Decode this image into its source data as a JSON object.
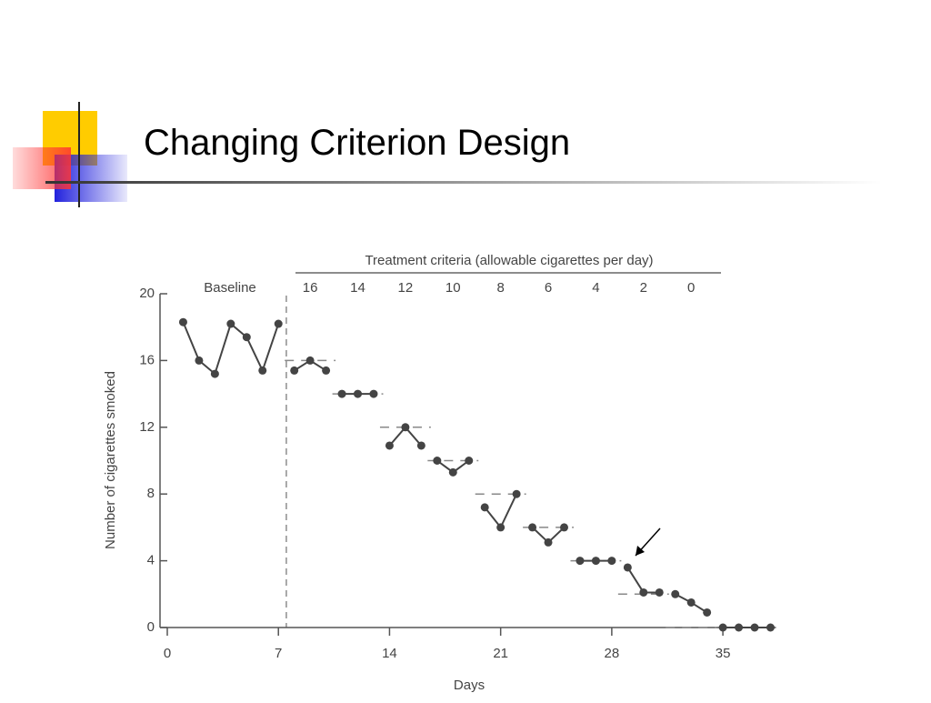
{
  "title": "Changing Criterion Design",
  "chart_data": {
    "type": "line",
    "xlabel": "Days",
    "ylabel": "Number of cigarettes smoked",
    "baseline_label": "Baseline",
    "criteria_title": "Treatment criteria (allowable cigarettes per day)",
    "criteria": [
      16,
      14,
      12,
      10,
      8,
      6,
      4,
      2,
      0
    ],
    "xlim": [
      0,
      38
    ],
    "xticks": [
      0,
      7,
      14,
      21,
      28,
      35
    ],
    "ylim": [
      0,
      20
    ],
    "yticks": [
      0,
      4,
      8,
      12,
      16,
      20
    ],
    "color": "#444444",
    "series": [
      {
        "x": [
          1,
          2,
          3,
          4,
          5,
          6,
          7
        ],
        "values": [
          18.3,
          16.0,
          15.2,
          18.2,
          17.4,
          15.4,
          18.2
        ]
      },
      {
        "x": [
          8,
          9,
          10
        ],
        "values": [
          15.4,
          16.0,
          15.4
        ]
      },
      {
        "x": [
          11,
          12,
          13
        ],
        "values": [
          14,
          14,
          14
        ]
      },
      {
        "x": [
          14,
          15,
          16
        ],
        "values": [
          10.9,
          12.0,
          10.9
        ]
      },
      {
        "x": [
          17,
          18,
          19
        ],
        "values": [
          10.0,
          9.3,
          10.0
        ]
      },
      {
        "x": [
          20,
          21,
          22
        ],
        "values": [
          7.2,
          6.0,
          8.0
        ]
      },
      {
        "x": [
          23,
          24,
          25
        ],
        "values": [
          6.0,
          5.1,
          6.0
        ]
      },
      {
        "x": [
          26,
          27,
          28
        ],
        "values": [
          4,
          4,
          4
        ]
      },
      {
        "x": [
          29,
          30,
          31
        ],
        "values": [
          3.6,
          2.1,
          2.1
        ]
      },
      {
        "x": [
          32,
          33,
          34
        ],
        "values": [
          2.0,
          1.5,
          0.9
        ]
      },
      {
        "x": [
          35,
          36,
          37,
          38
        ],
        "values": [
          0,
          0,
          0,
          0
        ]
      }
    ]
  }
}
